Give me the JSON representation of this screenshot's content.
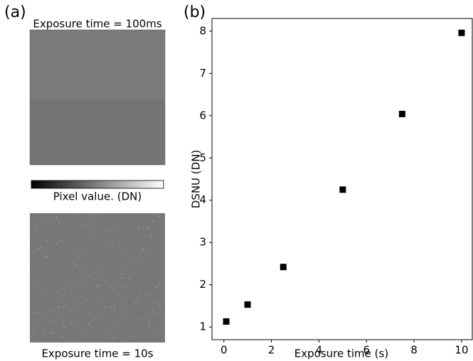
{
  "panel_a": {
    "label": "(a)",
    "top_title": "Exposure time = 100ms",
    "colorbar_label": "Pixel value. (DN)",
    "bottom_title": "Exposure time = 10s"
  },
  "panel_b": {
    "label": "(b)"
  },
  "chart_data": {
    "type": "scatter",
    "xlabel": "Exposure time (s)",
    "ylabel": "DSNU (DN)",
    "x": [
      0.1,
      1,
      2.5,
      5,
      7.5,
      10
    ],
    "values": [
      1.13,
      1.53,
      2.42,
      4.25,
      6.04,
      7.96
    ],
    "color": "#000000",
    "xlim": [
      -0.5,
      10.45
    ],
    "ylim": [
      0.7,
      8.3
    ],
    "xticks": [
      0,
      2,
      4,
      6,
      8,
      10
    ],
    "yticks": [
      1,
      2,
      3,
      4,
      5,
      6,
      7,
      8
    ]
  }
}
